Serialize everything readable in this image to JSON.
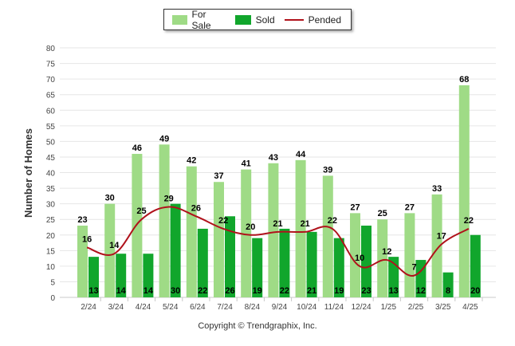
{
  "legend": {
    "for_sale": "For Sale",
    "sold": "Sold",
    "pended": "Pended"
  },
  "copyright": "Copyright © Trendgraphix, Inc.",
  "colors": {
    "for_sale": "#9fdb86",
    "sold": "#11a62c",
    "pended": "#b0121b",
    "grid": "#e6e6e6",
    "label": "#000000"
  },
  "chart_data": {
    "type": "bar",
    "title": "",
    "xlabel": "",
    "ylabel": "Number of Homes",
    "ylim": [
      0,
      80
    ],
    "yticks": [
      0,
      5,
      10,
      15,
      20,
      25,
      30,
      35,
      40,
      45,
      50,
      55,
      60,
      65,
      70,
      75,
      80
    ],
    "grid": true,
    "legend_position": "top-center",
    "categories": [
      "2/24",
      "3/24",
      "4/24",
      "5/24",
      "6/24",
      "7/24",
      "8/24",
      "9/24",
      "10/24",
      "11/24",
      "12/24",
      "1/25",
      "2/25",
      "3/25",
      "4/25"
    ],
    "series": [
      {
        "name": "For Sale",
        "type": "bar",
        "values": [
          23,
          30,
          46,
          49,
          42,
          37,
          41,
          43,
          44,
          39,
          27,
          25,
          27,
          33,
          68
        ]
      },
      {
        "name": "Sold",
        "type": "bar",
        "values": [
          13,
          14,
          14,
          30,
          22,
          26,
          19,
          22,
          21,
          19,
          23,
          13,
          12,
          8,
          20
        ]
      },
      {
        "name": "Pended",
        "type": "line",
        "values": [
          16,
          14,
          25,
          29,
          26,
          22,
          20,
          21,
          21,
          22,
          10,
          12,
          7,
          17,
          22
        ]
      }
    ]
  }
}
